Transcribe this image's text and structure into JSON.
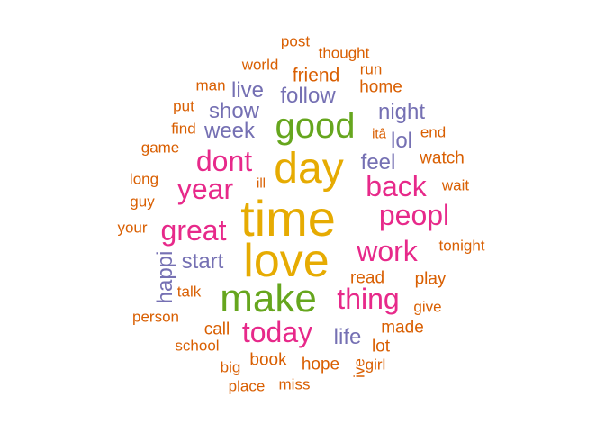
{
  "palette": {
    "orange": "#d95f02",
    "purple": "#7570b3",
    "pink": "#e7298a",
    "green": "#66a61e",
    "gold": "#e6ab02"
  },
  "words": [
    {
      "text": "time",
      "color": "gold"
    },
    {
      "text": "love",
      "color": "gold"
    },
    {
      "text": "day",
      "color": "gold"
    },
    {
      "text": "make",
      "color": "green"
    },
    {
      "text": "good",
      "color": "green"
    },
    {
      "text": "work",
      "color": "pink"
    },
    {
      "text": "peopl",
      "color": "pink"
    },
    {
      "text": "great",
      "color": "pink"
    },
    {
      "text": "dont",
      "color": "pink"
    },
    {
      "text": "year",
      "color": "pink"
    },
    {
      "text": "back",
      "color": "pink"
    },
    {
      "text": "thing",
      "color": "pink"
    },
    {
      "text": "today",
      "color": "pink"
    },
    {
      "text": "feel",
      "color": "purple"
    },
    {
      "text": "start",
      "color": "purple"
    },
    {
      "text": "happi",
      "color": "purple"
    },
    {
      "text": "life",
      "color": "purple"
    },
    {
      "text": "follow",
      "color": "purple"
    },
    {
      "text": "show",
      "color": "purple"
    },
    {
      "text": "week",
      "color": "purple"
    },
    {
      "text": "live",
      "color": "purple"
    },
    {
      "text": "night",
      "color": "purple"
    },
    {
      "text": "lol",
      "color": "purple"
    },
    {
      "text": "friend",
      "color": "orange"
    },
    {
      "text": "home",
      "color": "orange"
    },
    {
      "text": "watch",
      "color": "orange"
    },
    {
      "text": "play",
      "color": "orange"
    },
    {
      "text": "made",
      "color": "orange"
    },
    {
      "text": "call",
      "color": "orange"
    },
    {
      "text": "book",
      "color": "orange"
    },
    {
      "text": "hope",
      "color": "orange"
    },
    {
      "text": "read",
      "color": "orange"
    },
    {
      "text": "lot",
      "color": "orange"
    },
    {
      "text": "give",
      "color": "orange"
    },
    {
      "text": "tonight",
      "color": "orange"
    },
    {
      "text": "wait",
      "color": "orange"
    },
    {
      "text": "end",
      "color": "orange"
    },
    {
      "text": "itâ",
      "color": "orange"
    },
    {
      "text": "post",
      "color": "orange"
    },
    {
      "text": "thought",
      "color": "orange"
    },
    {
      "text": "world",
      "color": "orange"
    },
    {
      "text": "run",
      "color": "orange"
    },
    {
      "text": "man",
      "color": "orange"
    },
    {
      "text": "put",
      "color": "orange"
    },
    {
      "text": "find",
      "color": "orange"
    },
    {
      "text": "game",
      "color": "orange"
    },
    {
      "text": "long",
      "color": "orange"
    },
    {
      "text": "guy",
      "color": "orange"
    },
    {
      "text": "ill",
      "color": "orange"
    },
    {
      "text": "your",
      "color": "orange"
    },
    {
      "text": "talk",
      "color": "orange"
    },
    {
      "text": "person",
      "color": "orange"
    },
    {
      "text": "school",
      "color": "orange"
    },
    {
      "text": "big",
      "color": "orange"
    },
    {
      "text": "place",
      "color": "orange"
    },
    {
      "text": "miss",
      "color": "orange"
    },
    {
      "text": "girl",
      "color": "orange"
    },
    {
      "text": "ive",
      "color": "orange"
    }
  ]
}
